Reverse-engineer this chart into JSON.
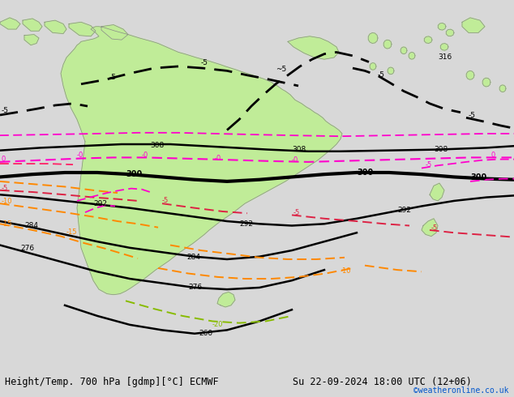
{
  "title_left": "Height/Temp. 700 hPa [gdmp][°C] ECMWF",
  "title_right": "Su 22-09-2024 18:00 UTC (12+06)",
  "watermark": "©weatheronline.co.uk",
  "bg_color": "#d8d8d8",
  "land_color": "#c0ec98",
  "border_color": "#888888",
  "ocean_color": "#d0d0d0",
  "fig_width": 6.34,
  "fig_height": 4.9,
  "dpi": 100,
  "lfs": 6.5,
  "colors": {
    "geo": "#000000",
    "mag": "#ff00cc",
    "pink": "#ff2266",
    "red": "#dd2244",
    "orange": "#ff8800",
    "ygreen": "#88bb00"
  }
}
